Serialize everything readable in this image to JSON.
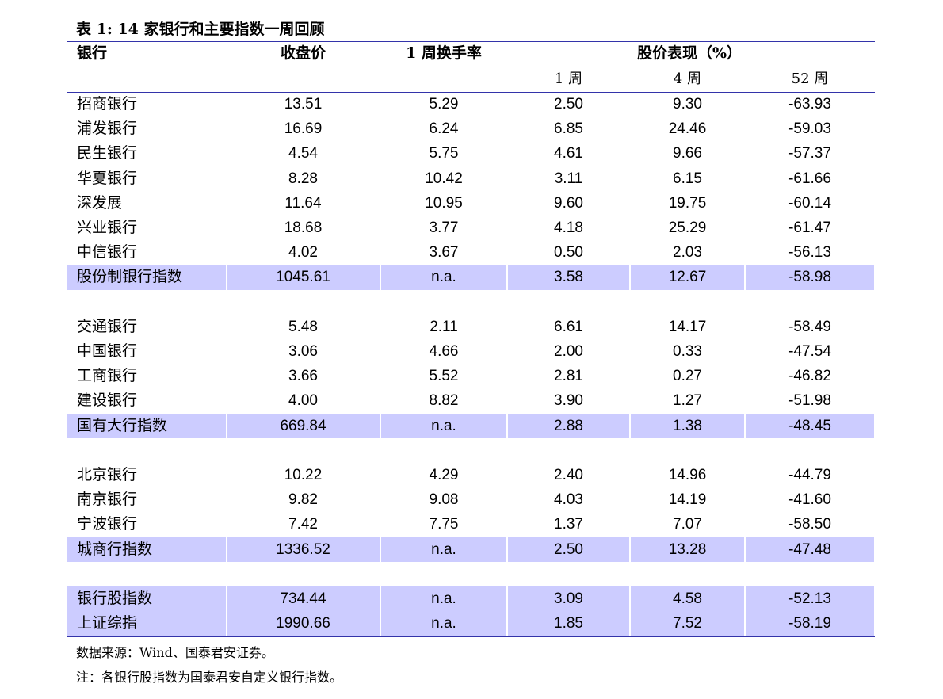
{
  "title": "表 1: 14 家银行和主要指数一周回顾",
  "header": [
    "银行",
    "收盘价",
    "1 周换手率",
    "股价表现（%）"
  ],
  "subheader": [
    "1 周",
    "4 周",
    "52 周"
  ],
  "groups": [
    {
      "banks": [
        [
          "招商银行",
          "13.51",
          "5.29",
          "2.50",
          "9.30",
          "-63.93"
        ],
        [
          "浦发银行",
          "16.69",
          "6.24",
          "6.85",
          "24.46",
          "-59.03"
        ],
        [
          "民生银行",
          "4.54",
          "5.75",
          "4.61",
          "9.66",
          "-57.37"
        ],
        [
          "华夏银行",
          "8.28",
          "10.42",
          "3.11",
          "6.15",
          "-61.66"
        ],
        [
          "深发展",
          "11.64",
          "10.95",
          "9.60",
          "19.75",
          "-60.14"
        ],
        [
          "兴业银行",
          "18.68",
          "3.77",
          "4.18",
          "25.29",
          "-61.47"
        ],
        [
          "中信银行",
          "4.02",
          "3.67",
          "0.50",
          "2.03",
          "-56.13"
        ]
      ],
      "indices": [
        [
          "股份制银行指数",
          "1045.61",
          "n.a.",
          "3.58",
          "12.67",
          "-58.98"
        ]
      ]
    },
    {
      "banks": [
        [
          "交通银行",
          "5.48",
          "2.11",
          "6.61",
          "14.17",
          "-58.49"
        ],
        [
          "中国银行",
          "3.06",
          "4.66",
          "2.00",
          "0.33",
          "-47.54"
        ],
        [
          "工商银行",
          "3.66",
          "5.52",
          "2.81",
          "0.27",
          "-46.82"
        ],
        [
          "建设银行",
          "4.00",
          "8.82",
          "3.90",
          "1.27",
          "-51.98"
        ]
      ],
      "indices": [
        [
          "国有大行指数",
          "669.84",
          "n.a.",
          "2.88",
          "1.38",
          "-48.45"
        ]
      ]
    },
    {
      "banks": [
        [
          "北京银行",
          "10.22",
          "4.29",
          "2.40",
          "14.96",
          "-44.79"
        ],
        [
          "南京银行",
          "9.82",
          "9.08",
          "4.03",
          "14.19",
          "-41.60"
        ],
        [
          "宁波银行",
          "7.42",
          "7.75",
          "1.37",
          "7.07",
          "-58.50"
        ]
      ],
      "indices": [
        [
          "城商行指数",
          "1336.52",
          "n.a.",
          "2.50",
          "13.28",
          "-47.48"
        ]
      ]
    },
    {
      "banks": [],
      "indices": [
        [
          "银行股指数",
          "734.44",
          "n.a.",
          "3.09",
          "4.58",
          "-52.13"
        ],
        [
          "上证综指",
          "1990.66",
          "n.a.",
          "1.85",
          "7.52",
          "-58.19"
        ]
      ]
    }
  ],
  "footnotes": [
    "数据来源：Wind、国泰君安证券。",
    "注：各银行股指数为国泰君安自定义银行指数。"
  ]
}
